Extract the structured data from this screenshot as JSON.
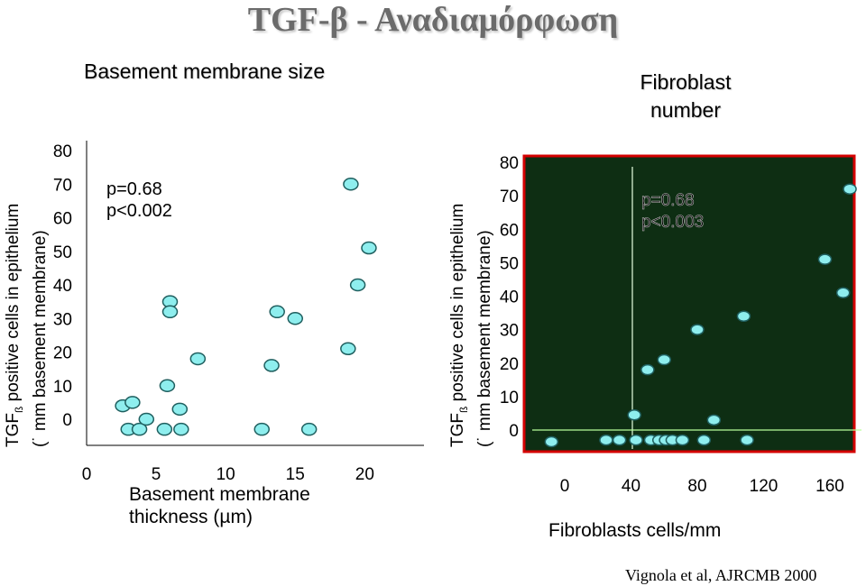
{
  "title": "TGF-β - Αναδιαμόρφωση",
  "citation": "Vignola et al, AJRCMB 2000",
  "left": {
    "header": "Basement membrane size",
    "y_label_line1_pre": "TGF",
    "y_label_line1_sub": "ß",
    "y_label_line1_post": " positive cells in epithelium",
    "y_label_line2": "(˙ mm basement membrane)",
    "stat1": "p=0.68",
    "stat2": "p<0.002",
    "x_label_line1": "Basement membrane",
    "x_label_line2": "thickness (µm)"
  },
  "right": {
    "header_line1": "Fibroblast",
    "header_line2": "number",
    "y_label_line1_pre": "TGF",
    "y_label_line1_sub": "ß",
    "y_label_line1_post": " positive cells in epithelium",
    "y_label_line2": "(˙ mm basement membrane)",
    "stat1": "p=0.68",
    "stat2": "p<0.003",
    "x_label": "Fibroblasts cells/mm"
  },
  "chart_data": [
    {
      "type": "scatter",
      "title": "Basement membrane size",
      "xlabel": "Basement membrane thickness (µm)",
      "ylabel": "TGFß positive cells in epithelium (˙ mm basement membrane)",
      "xlim": [
        0,
        24
      ],
      "ylim": [
        0,
        80
      ],
      "x_ticks": [
        "0",
        "5",
        "10",
        "15",
        "20"
      ],
      "y_ticks": [
        "0",
        "10",
        "20",
        "30",
        "40",
        "50",
        "60",
        "70",
        "80"
      ],
      "annotations": [
        "p=0.68",
        "p<0.002"
      ],
      "grid": false,
      "points": [
        {
          "x": 2.6,
          "y": 4
        },
        {
          "x": 3.3,
          "y": 5
        },
        {
          "x": 3.0,
          "y": -3
        },
        {
          "x": 3.8,
          "y": -3
        },
        {
          "x": 4.3,
          "y": 0
        },
        {
          "x": 5.6,
          "y": -3
        },
        {
          "x": 6.8,
          "y": -3
        },
        {
          "x": 6.7,
          "y": 3
        },
        {
          "x": 5.8,
          "y": 10
        },
        {
          "x": 6.0,
          "y": 35
        },
        {
          "x": 6.0,
          "y": 32
        },
        {
          "x": 8.0,
          "y": 18
        },
        {
          "x": 12.6,
          "y": -3
        },
        {
          "x": 13.3,
          "y": 16
        },
        {
          "x": 13.7,
          "y": 32
        },
        {
          "x": 15.0,
          "y": 30
        },
        {
          "x": 16.0,
          "y": -3
        },
        {
          "x": 18.8,
          "y": 21
        },
        {
          "x": 19.5,
          "y": 40
        },
        {
          "x": 20.3,
          "y": 51
        },
        {
          "x": 19.0,
          "y": 70
        }
      ]
    },
    {
      "type": "scatter",
      "title": "Fibroblast number",
      "xlabel": "Fibroblasts cells/mm",
      "ylabel": "TGFß positive cells in epithelium (˙ mm basement membrane)",
      "xlim": [
        -10,
        170
      ],
      "ylim": [
        -3,
        80
      ],
      "x_ticks": [
        "0",
        "40",
        "80",
        "120",
        "160"
      ],
      "y_ticks": [
        "0",
        "10",
        "20",
        "30",
        "40",
        "50",
        "60",
        "70",
        "80"
      ],
      "annotations": [
        "p=0.68",
        "p<0.003"
      ],
      "grid": false,
      "points": [
        {
          "x": -8,
          "y": -3.5
        },
        {
          "x": 25,
          "y": -3
        },
        {
          "x": 33,
          "y": -3
        },
        {
          "x": 43,
          "y": -3
        },
        {
          "x": 42,
          "y": 4.5
        },
        {
          "x": 52,
          "y": -3
        },
        {
          "x": 57,
          "y": -3
        },
        {
          "x": 61,
          "y": -3
        },
        {
          "x": 65,
          "y": -3
        },
        {
          "x": 71,
          "y": -3
        },
        {
          "x": 84,
          "y": -3
        },
        {
          "x": 110,
          "y": -3
        },
        {
          "x": 50,
          "y": 18
        },
        {
          "x": 60,
          "y": 21
        },
        {
          "x": 80,
          "y": 30
        },
        {
          "x": 90,
          "y": 3
        },
        {
          "x": 108,
          "y": 34
        },
        {
          "x": 157,
          "y": 51
        },
        {
          "x": 168,
          "y": 41
        },
        {
          "x": 172,
          "y": 72
        }
      ]
    }
  ]
}
